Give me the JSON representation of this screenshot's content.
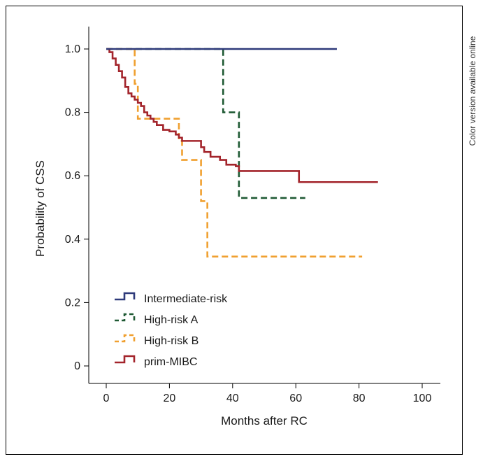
{
  "side_note": "Color version available online",
  "chart_data": {
    "type": "line",
    "subtype": "kaplan-meier step curves",
    "title": "",
    "xlabel": "Months after RC",
    "ylabel": "Probability of CSS",
    "xlim": [
      0,
      100
    ],
    "ylim": [
      0,
      1.0
    ],
    "xticks": [
      0,
      20,
      40,
      60,
      80,
      100
    ],
    "yticks": [
      0,
      0.2,
      0.4,
      0.6,
      0.8,
      1.0
    ],
    "ytick_labels": [
      "0",
      "0.2",
      "0.4",
      "0.6",
      "0.8",
      "1.0"
    ],
    "grid": false,
    "legend_position": "bottom-left",
    "series": [
      {
        "name": "Intermediate-risk",
        "color": "#2e3a7a",
        "dash": "solid",
        "x": [
          0,
          73
        ],
        "y": [
          1.0,
          1.0
        ]
      },
      {
        "name": "High-risk A",
        "color": "#1f5a34",
        "dash": "dashed",
        "x": [
          0,
          37,
          40,
          42,
          63
        ],
        "y": [
          1.0,
          0.8,
          0.8,
          0.53,
          0.53
        ]
      },
      {
        "name": "High-risk B",
        "color": "#f0a030",
        "dash": "dashed",
        "x": [
          0,
          9,
          10,
          23,
          24,
          30,
          32,
          81
        ],
        "y": [
          1.0,
          0.89,
          0.78,
          0.71,
          0.65,
          0.52,
          0.345,
          0.345
        ]
      },
      {
        "name": "prim-MIBC",
        "color": "#a3242b",
        "dash": "solid",
        "x": [
          0,
          1,
          2,
          3,
          4,
          5,
          6,
          7,
          8,
          9,
          10,
          11,
          12,
          13,
          14,
          15,
          16,
          18,
          20,
          22,
          23,
          24,
          28,
          30,
          31,
          33,
          35,
          36,
          38,
          41,
          42,
          46,
          61,
          86
        ],
        "y": [
          1.0,
          0.99,
          0.97,
          0.95,
          0.93,
          0.91,
          0.88,
          0.86,
          0.85,
          0.84,
          0.83,
          0.82,
          0.8,
          0.79,
          0.78,
          0.77,
          0.76,
          0.745,
          0.74,
          0.73,
          0.72,
          0.71,
          0.71,
          0.69,
          0.675,
          0.66,
          0.66,
          0.65,
          0.635,
          0.63,
          0.615,
          0.615,
          0.58,
          0.58
        ]
      }
    ]
  }
}
